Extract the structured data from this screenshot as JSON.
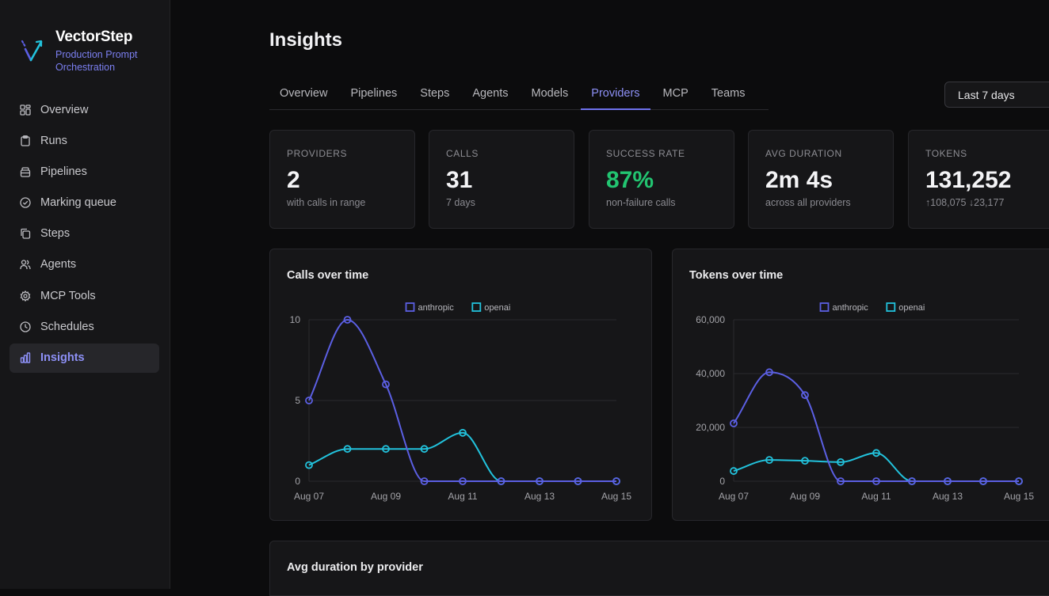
{
  "brand": {
    "name": "VectorStep",
    "tagline": "Production Prompt Orchestration"
  },
  "nav": [
    {
      "label": "Overview",
      "icon": "grid-icon"
    },
    {
      "label": "Runs",
      "icon": "clipboard-icon"
    },
    {
      "label": "Pipelines",
      "icon": "layers-icon"
    },
    {
      "label": "Marking queue",
      "icon": "check-circle-icon"
    },
    {
      "label": "Steps",
      "icon": "copy-icon"
    },
    {
      "label": "Agents",
      "icon": "users-icon"
    },
    {
      "label": "MCP Tools",
      "icon": "gear-icon"
    },
    {
      "label": "Schedules",
      "icon": "clock-icon"
    },
    {
      "label": "Insights",
      "icon": "bar-chart-icon",
      "active": true
    }
  ],
  "page": {
    "title": "Insights"
  },
  "tabs": [
    "Overview",
    "Pipelines",
    "Steps",
    "Agents",
    "Models",
    "Providers",
    "MCP",
    "Teams"
  ],
  "active_tab": "Providers",
  "range": {
    "value": "Last 7 days"
  },
  "stats": [
    {
      "label": "PROVIDERS",
      "value": "2",
      "sub": "with calls in range"
    },
    {
      "label": "CALLS",
      "value": "31",
      "sub": "7 days"
    },
    {
      "label": "SUCCESS RATE",
      "value": "87%",
      "sub": "non-failure calls",
      "color": "#22c571"
    },
    {
      "label": "AVG DURATION",
      "value": "2m 4s",
      "sub": "across all providers"
    },
    {
      "label": "TOKENS",
      "value": "131,252",
      "sub": "↑108,075 ↓23,177"
    }
  ],
  "colors": {
    "anthropic": "#5b5fe3",
    "openai": "#22c2dc"
  },
  "chart_data": [
    {
      "type": "line",
      "title": "Calls over time",
      "x": [
        "Aug 07",
        "Aug 08",
        "Aug 09",
        "Aug 10",
        "Aug 11",
        "Aug 12",
        "Aug 13",
        "Aug 14",
        "Aug 15"
      ],
      "xticks": [
        "Aug 07",
        "Aug 09",
        "Aug 11",
        "Aug 13",
        "Aug 15"
      ],
      "yticks": [
        "0",
        "5",
        "10"
      ],
      "ylim": [
        0,
        10
      ],
      "legend_position": "top-center",
      "series": [
        {
          "name": "anthropic",
          "values": [
            5,
            10,
            6,
            0,
            0,
            0,
            0,
            0,
            0
          ]
        },
        {
          "name": "openai",
          "values": [
            1,
            2,
            2,
            2,
            3,
            0,
            0,
            0,
            0
          ]
        }
      ]
    },
    {
      "type": "line",
      "title": "Tokens over time",
      "x": [
        "Aug 07",
        "Aug 08",
        "Aug 09",
        "Aug 10",
        "Aug 11",
        "Aug 12",
        "Aug 13",
        "Aug 14",
        "Aug 15"
      ],
      "xticks": [
        "Aug 07",
        "Aug 09",
        "Aug 11",
        "Aug 13",
        "Aug 15"
      ],
      "yticks": [
        "0",
        "20,000",
        "40,000",
        "60,000"
      ],
      "ylim": [
        0,
        60000
      ],
      "legend_position": "top-center",
      "series": [
        {
          "name": "anthropic",
          "values": [
            21500,
            40500,
            32000,
            0,
            0,
            0,
            0,
            0,
            0
          ]
        },
        {
          "name": "openai",
          "values": [
            3800,
            7900,
            7600,
            7100,
            10500,
            0,
            0,
            0,
            0
          ]
        }
      ]
    }
  ],
  "bottom_card": {
    "title": "Avg duration by provider"
  }
}
